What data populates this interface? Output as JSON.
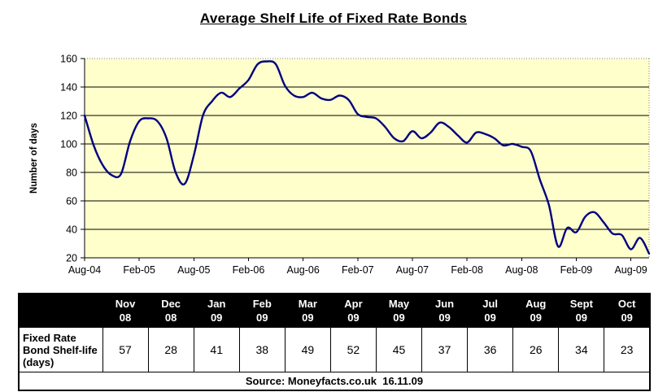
{
  "title": "Average Shelf Life of Fixed Rate Bonds",
  "colors": {
    "line": "#000080",
    "plot_bg": "#FFFFCC",
    "grid": "#000000",
    "plot_border_dotted": "#808080",
    "table_header_bg": "#000000",
    "table_header_text": "#FFFFFF"
  },
  "chart_data": {
    "type": "line",
    "title": "Average Shelf Life of Fixed Rate Bonds",
    "xlabel": "",
    "ylabel": "Number of days",
    "ylim": [
      20,
      160
    ],
    "ytick_step": 20,
    "grid": true,
    "legend": false,
    "line_color": "#000080",
    "plot_bg": "#FFFFCC",
    "x_tick_labels": [
      "Aug-04",
      "Feb-05",
      "Aug-05",
      "Feb-06",
      "Aug-06",
      "Feb-07",
      "Aug-07",
      "Feb-08",
      "Aug-08",
      "Feb-09",
      "Aug-09"
    ],
    "x": [
      "Aug-04",
      "Sep-04",
      "Oct-04",
      "Nov-04",
      "Dec-04",
      "Jan-05",
      "Feb-05",
      "Mar-05",
      "Apr-05",
      "May-05",
      "Jun-05",
      "Jul-05",
      "Aug-05",
      "Sep-05",
      "Oct-05",
      "Nov-05",
      "Dec-05",
      "Jan-06",
      "Feb-06",
      "Mar-06",
      "Apr-06",
      "May-06",
      "Jun-06",
      "Jul-06",
      "Aug-06",
      "Sep-06",
      "Oct-06",
      "Nov-06",
      "Dec-06",
      "Jan-07",
      "Feb-07",
      "Mar-07",
      "Apr-07",
      "May-07",
      "Jun-07",
      "Jul-07",
      "Aug-07",
      "Sep-07",
      "Oct-07",
      "Nov-07",
      "Dec-07",
      "Jan-08",
      "Feb-08",
      "Mar-08",
      "Apr-08",
      "May-08",
      "Jun-08",
      "Jul-08",
      "Aug-08",
      "Sep-08",
      "Oct-08",
      "Nov-08",
      "Dec-08",
      "Jan-09",
      "Feb-09",
      "Mar-09",
      "Apr-09",
      "May-09",
      "Jun-09",
      "Jul-09",
      "Aug-09",
      "Sep-09",
      "Oct-09"
    ],
    "values": [
      120,
      99,
      85,
      78,
      79,
      102,
      116,
      118,
      116,
      104,
      80,
      72,
      92,
      120,
      130,
      136,
      133,
      139,
      145,
      156,
      158,
      156,
      141,
      134,
      133,
      136,
      132,
      131,
      134,
      131,
      121,
      119,
      118,
      112,
      104,
      102,
      109,
      104,
      108,
      115,
      112,
      106,
      101,
      108,
      107,
      104,
      99,
      100,
      98,
      95,
      75,
      57,
      28,
      41,
      38,
      49,
      52,
      45,
      37,
      36,
      26,
      34,
      23
    ]
  },
  "table": {
    "columns": [
      {
        "line1": "Nov",
        "line2": "08"
      },
      {
        "line1": "Dec",
        "line2": "08"
      },
      {
        "line1": "Jan",
        "line2": "09"
      },
      {
        "line1": "Feb",
        "line2": "09"
      },
      {
        "line1": "Mar",
        "line2": "09"
      },
      {
        "line1": "Apr",
        "line2": "09"
      },
      {
        "line1": "May",
        "line2": "09"
      },
      {
        "line1": "Jun",
        "line2": "09"
      },
      {
        "line1": "Jul",
        "line2": "09"
      },
      {
        "line1": "Aug",
        "line2": "09"
      },
      {
        "line1": "Sept",
        "line2": "09"
      },
      {
        "line1": "Oct",
        "line2": "09"
      }
    ],
    "row_label": "Fixed Rate Bond Shelf-life (days)",
    "values": [
      57,
      28,
      41,
      38,
      49,
      52,
      45,
      37,
      36,
      26,
      34,
      23
    ],
    "source": "Source: Moneyfacts.co.uk  16.11.09"
  }
}
